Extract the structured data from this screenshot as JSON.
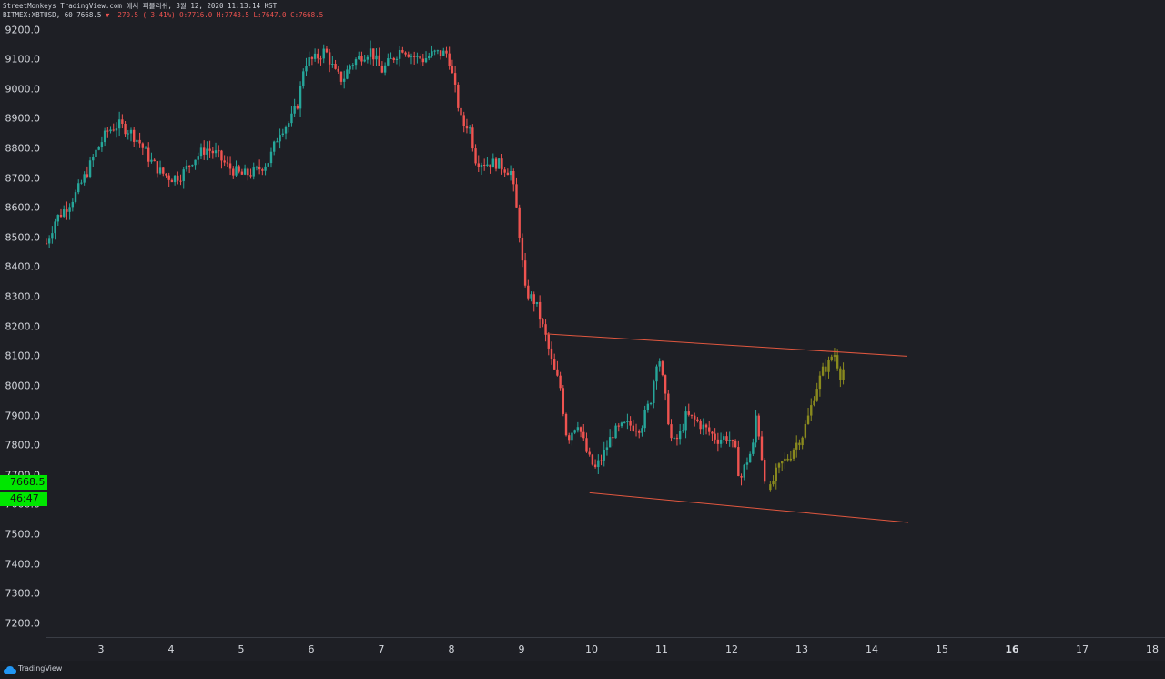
{
  "header": {
    "line1": "StreetMonkeys TradingView.com 에서 퍼블리쉬, 3월 12, 2020 11:13:14 KST",
    "symbol": "BITMEX:XBTUSD, 60",
    "last": "7668.5",
    "change": "▼ −270.5 (−3.41%)",
    "ohlc": "O:7716.0 H:7743.5 L:7647.0 C:7668.5"
  },
  "price_badge": {
    "price": "7668.5",
    "countdown": "46:47"
  },
  "footer": {
    "brand": "TradingView"
  },
  "colors": {
    "up": "#26a69a",
    "down": "#ef5350",
    "projection": "#8a8a1e",
    "trendline": "#e0573f"
  },
  "chart_data": {
    "type": "candlestick",
    "symbol": "BITMEX:XBTUSD",
    "interval": "60",
    "ylim": [
      7150,
      9250
    ],
    "y_ticks": [
      7200,
      7300,
      7400,
      7500,
      7600,
      7700,
      7800,
      7900,
      8000,
      8100,
      8200,
      8300,
      8400,
      8500,
      8600,
      8700,
      8800,
      8900,
      9000,
      9100,
      9200
    ],
    "x_range": [
      2.2,
      18.0
    ],
    "x_ticks": [
      {
        "label": "3",
        "x": 3,
        "bold": false
      },
      {
        "label": "4",
        "x": 4,
        "bold": false
      },
      {
        "label": "5",
        "x": 5,
        "bold": false
      },
      {
        "label": "6",
        "x": 6,
        "bold": false
      },
      {
        "label": "7",
        "x": 7,
        "bold": false
      },
      {
        "label": "8",
        "x": 8,
        "bold": false
      },
      {
        "label": "9",
        "x": 9,
        "bold": false
      },
      {
        "label": "10",
        "x": 10,
        "bold": false
      },
      {
        "label": "11",
        "x": 11,
        "bold": false
      },
      {
        "label": "12",
        "x": 12,
        "bold": false
      },
      {
        "label": "13",
        "x": 13,
        "bold": false
      },
      {
        "label": "14",
        "x": 14,
        "bold": false
      },
      {
        "label": "15",
        "x": 15,
        "bold": false
      },
      {
        "label": "16",
        "x": 16,
        "bold": true
      },
      {
        "label": "17",
        "x": 17,
        "bold": false
      },
      {
        "label": "18",
        "x": 18,
        "bold": false
      }
    ],
    "price_path": [
      [
        2.22,
        8480
      ],
      [
        2.35,
        8560
      ],
      [
        2.5,
        8600
      ],
      [
        2.65,
        8650
      ],
      [
        2.8,
        8720
      ],
      [
        2.95,
        8800
      ],
      [
        3.1,
        8860
      ],
      [
        3.25,
        8880
      ],
      [
        3.4,
        8860
      ],
      [
        3.55,
        8820
      ],
      [
        3.7,
        8760
      ],
      [
        3.85,
        8720
      ],
      [
        4.0,
        8700
      ],
      [
        4.15,
        8710
      ],
      [
        4.3,
        8760
      ],
      [
        4.5,
        8800
      ],
      [
        4.65,
        8780
      ],
      [
        4.8,
        8740
      ],
      [
        5.0,
        8710
      ],
      [
        5.2,
        8720
      ],
      [
        5.4,
        8760
      ],
      [
        5.55,
        8860
      ],
      [
        5.7,
        8890
      ],
      [
        5.82,
        8960
      ],
      [
        5.9,
        9090
      ],
      [
        6.05,
        9100
      ],
      [
        6.2,
        9130
      ],
      [
        6.35,
        9050
      ],
      [
        6.45,
        9030
      ],
      [
        6.55,
        9080
      ],
      [
        6.7,
        9110
      ],
      [
        6.85,
        9130
      ],
      [
        7.0,
        9060
      ],
      [
        7.15,
        9100
      ],
      [
        7.3,
        9140
      ],
      [
        7.45,
        9110
      ],
      [
        7.6,
        9100
      ],
      [
        7.75,
        9120
      ],
      [
        7.95,
        9120
      ],
      [
        8.05,
        9000
      ],
      [
        8.15,
        8880
      ],
      [
        8.25,
        8880
      ],
      [
        8.35,
        8760
      ],
      [
        8.5,
        8750
      ],
      [
        8.65,
        8750
      ],
      [
        8.85,
        8720
      ],
      [
        8.95,
        8560
      ],
      [
        9.05,
        8320
      ],
      [
        9.2,
        8280
      ],
      [
        9.35,
        8160
      ],
      [
        9.45,
        8060
      ],
      [
        9.55,
        8000
      ],
      [
        9.65,
        7820
      ],
      [
        9.8,
        7880
      ],
      [
        9.95,
        7760
      ],
      [
        10.05,
        7720
      ],
      [
        10.15,
        7760
      ],
      [
        10.3,
        7840
      ],
      [
        10.5,
        7870
      ],
      [
        10.7,
        7860
      ],
      [
        10.85,
        7960
      ],
      [
        10.95,
        8120
      ],
      [
        11.05,
        7960
      ],
      [
        11.15,
        7800
      ],
      [
        11.25,
        7830
      ],
      [
        11.35,
        7900
      ],
      [
        11.5,
        7880
      ],
      [
        11.65,
        7850
      ],
      [
        11.8,
        7820
      ],
      [
        11.95,
        7830
      ],
      [
        12.05,
        7780
      ],
      [
        12.12,
        7680
      ],
      [
        12.2,
        7740
      ],
      [
        12.3,
        7790
      ],
      [
        12.35,
        7910
      ],
      [
        12.45,
        7720
      ],
      [
        12.5,
        7660
      ]
    ],
    "projection_path": [
      [
        12.55,
        7650
      ],
      [
        12.62,
        7700
      ],
      [
        12.72,
        7740
      ],
      [
        12.82,
        7760
      ],
      [
        12.9,
        7800
      ],
      [
        13.0,
        7830
      ],
      [
        13.1,
        7900
      ],
      [
        13.2,
        7990
      ],
      [
        13.3,
        8050
      ],
      [
        13.4,
        8080
      ],
      [
        13.45,
        8120
      ],
      [
        13.55,
        8040
      ],
      [
        13.6,
        8060
      ]
    ],
    "trendlines": [
      {
        "from": [
          9.35,
          8175
        ],
        "to": [
          14.5,
          8100
        ]
      },
      {
        "from": [
          9.97,
          7640
        ],
        "to": [
          14.52,
          7540
        ]
      }
    ]
  }
}
